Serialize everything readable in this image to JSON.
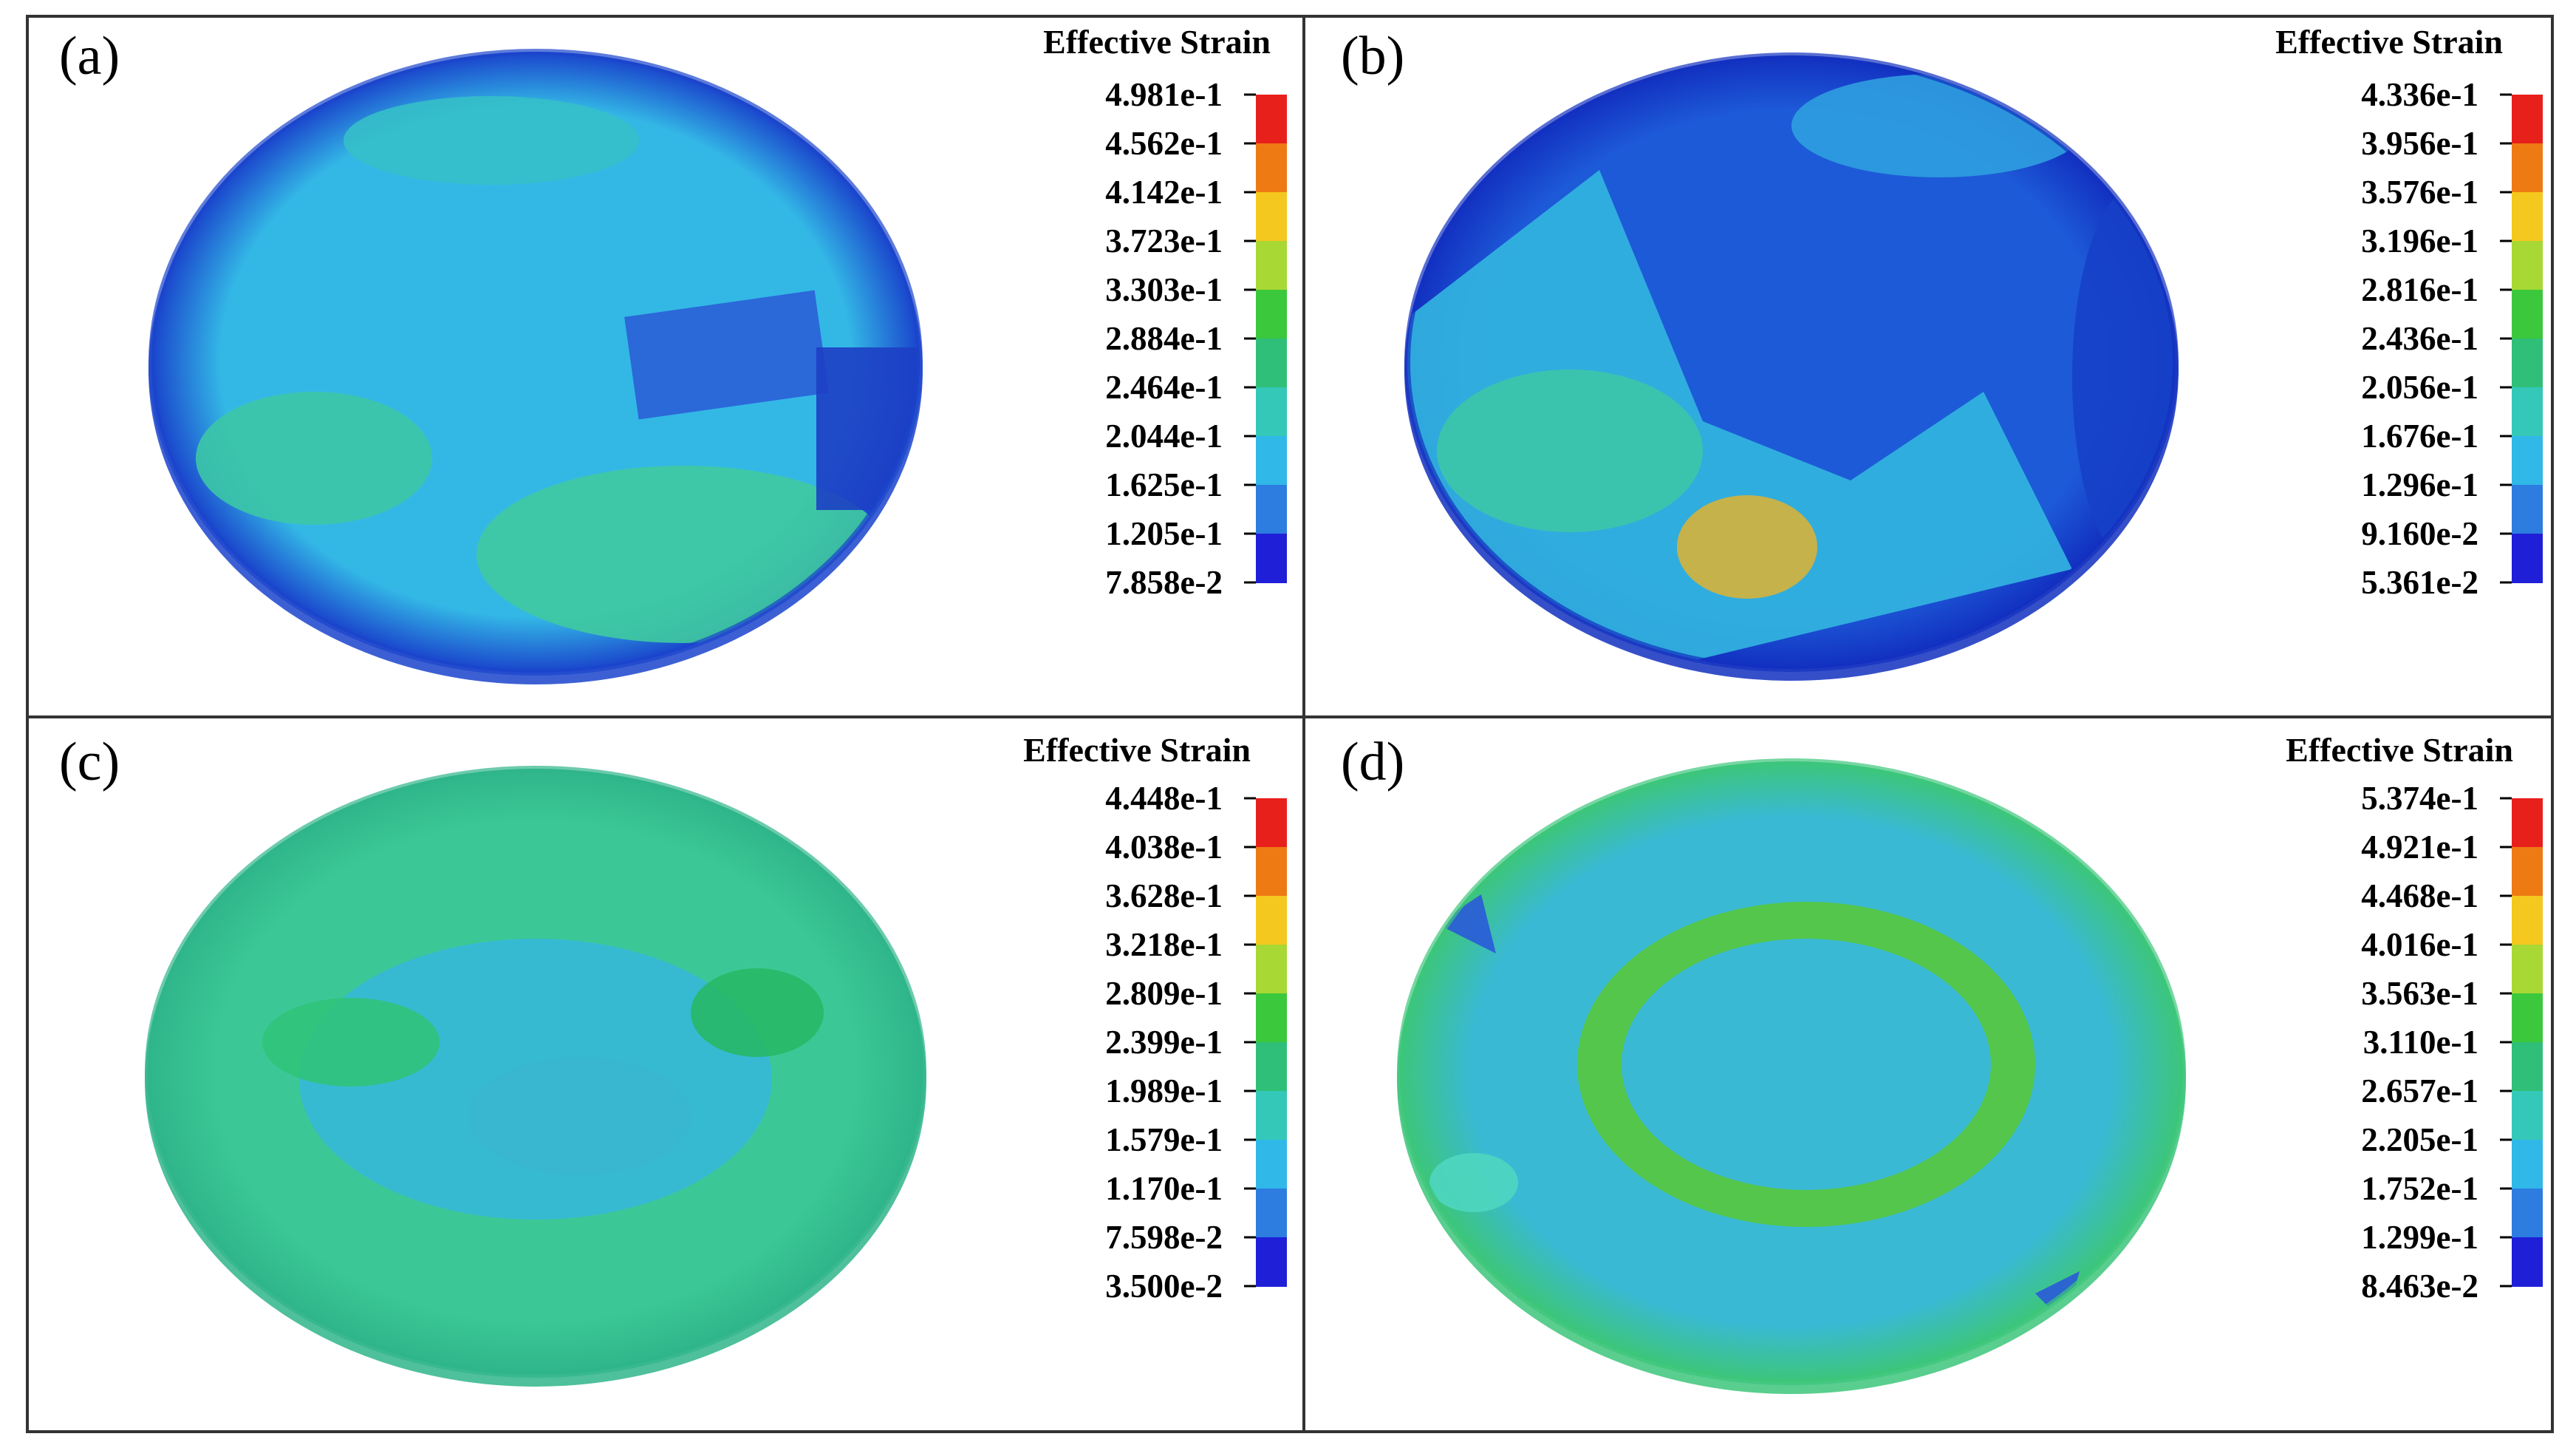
{
  "figure": {
    "panels": [
      {
        "id": "a",
        "tag": "(a)",
        "legend_title": "Effective Strain",
        "tick_labels": [
          "4.981e-1",
          "4.562e-1",
          "4.142e-1",
          "3.723e-1",
          "3.303e-1",
          "2.884e-1",
          "2.464e-1",
          "2.044e-1",
          "1.625e-1",
          "1.205e-1",
          "7.858e-2"
        ],
        "base_color": "#33b8e6",
        "rim_color": "#1a44cc",
        "patches": [
          {
            "color": "#3cc6a6"
          },
          {
            "color": "#2a5fd6"
          },
          {
            "color": "#3fcaa0"
          },
          {
            "color": "#1d3fc4"
          },
          {
            "color": "#35bfc8"
          }
        ]
      },
      {
        "id": "b",
        "tag": "(b)",
        "legend_title": "Effective Strain",
        "tick_labels": [
          "4.336e-1",
          "3.956e-1",
          "3.576e-1",
          "3.196e-1",
          "2.816e-1",
          "2.436e-1",
          "2.056e-1",
          "1.676e-1",
          "1.296e-1",
          "9.160e-2",
          "5.361e-2"
        ],
        "base_color": "#1d5ad8",
        "rim_color": "#1230c0",
        "patches": [
          {
            "color": "#33b6e0"
          },
          {
            "color": "#3cc6a8"
          },
          {
            "color": "#d6b23a"
          },
          {
            "color": "#2f9fe0"
          },
          {
            "color": "#1640c8"
          }
        ]
      },
      {
        "id": "c",
        "tag": "(c)",
        "legend_title": "Effective Strain",
        "tick_labels": [
          "4.448e-1",
          "4.038e-1",
          "3.628e-1",
          "3.218e-1",
          "2.809e-1",
          "2.399e-1",
          "1.989e-1",
          "1.579e-1",
          "1.170e-1",
          "7.598e-2",
          "3.500e-2"
        ],
        "base_color": "#3cc896",
        "rim_color": "#2fb58a",
        "patches": [
          {
            "color": "#35b8d8"
          },
          {
            "color": "#2fc37a"
          },
          {
            "color": "#3ab6cf"
          },
          {
            "color": "#28b866"
          }
        ]
      },
      {
        "id": "d",
        "tag": "(d)",
        "legend_title": "Effective Strain",
        "tick_labels": [
          "5.374e-1",
          "4.921e-1",
          "4.468e-1",
          "4.016e-1",
          "3.563e-1",
          "3.110e-1",
          "2.657e-1",
          "2.205e-1",
          "1.752e-1",
          "1.299e-1",
          "8.463e-2"
        ],
        "base_color": "#3ab9d4",
        "rim_color": "#3cc67a",
        "patches": [
          {
            "color": "#56c83c"
          },
          {
            "color": "#35b3e2"
          },
          {
            "color": "#2a5ad8"
          },
          {
            "color": "#4fd6c0"
          }
        ]
      }
    ],
    "colorbar_colors": [
      "#e8201c",
      "#ee7a14",
      "#f4c81e",
      "#a8d834",
      "#3cc83c",
      "#2fbf78",
      "#34c8b8",
      "#30b8e8",
      "#2d7ce0",
      "#1f1fd8"
    ]
  }
}
